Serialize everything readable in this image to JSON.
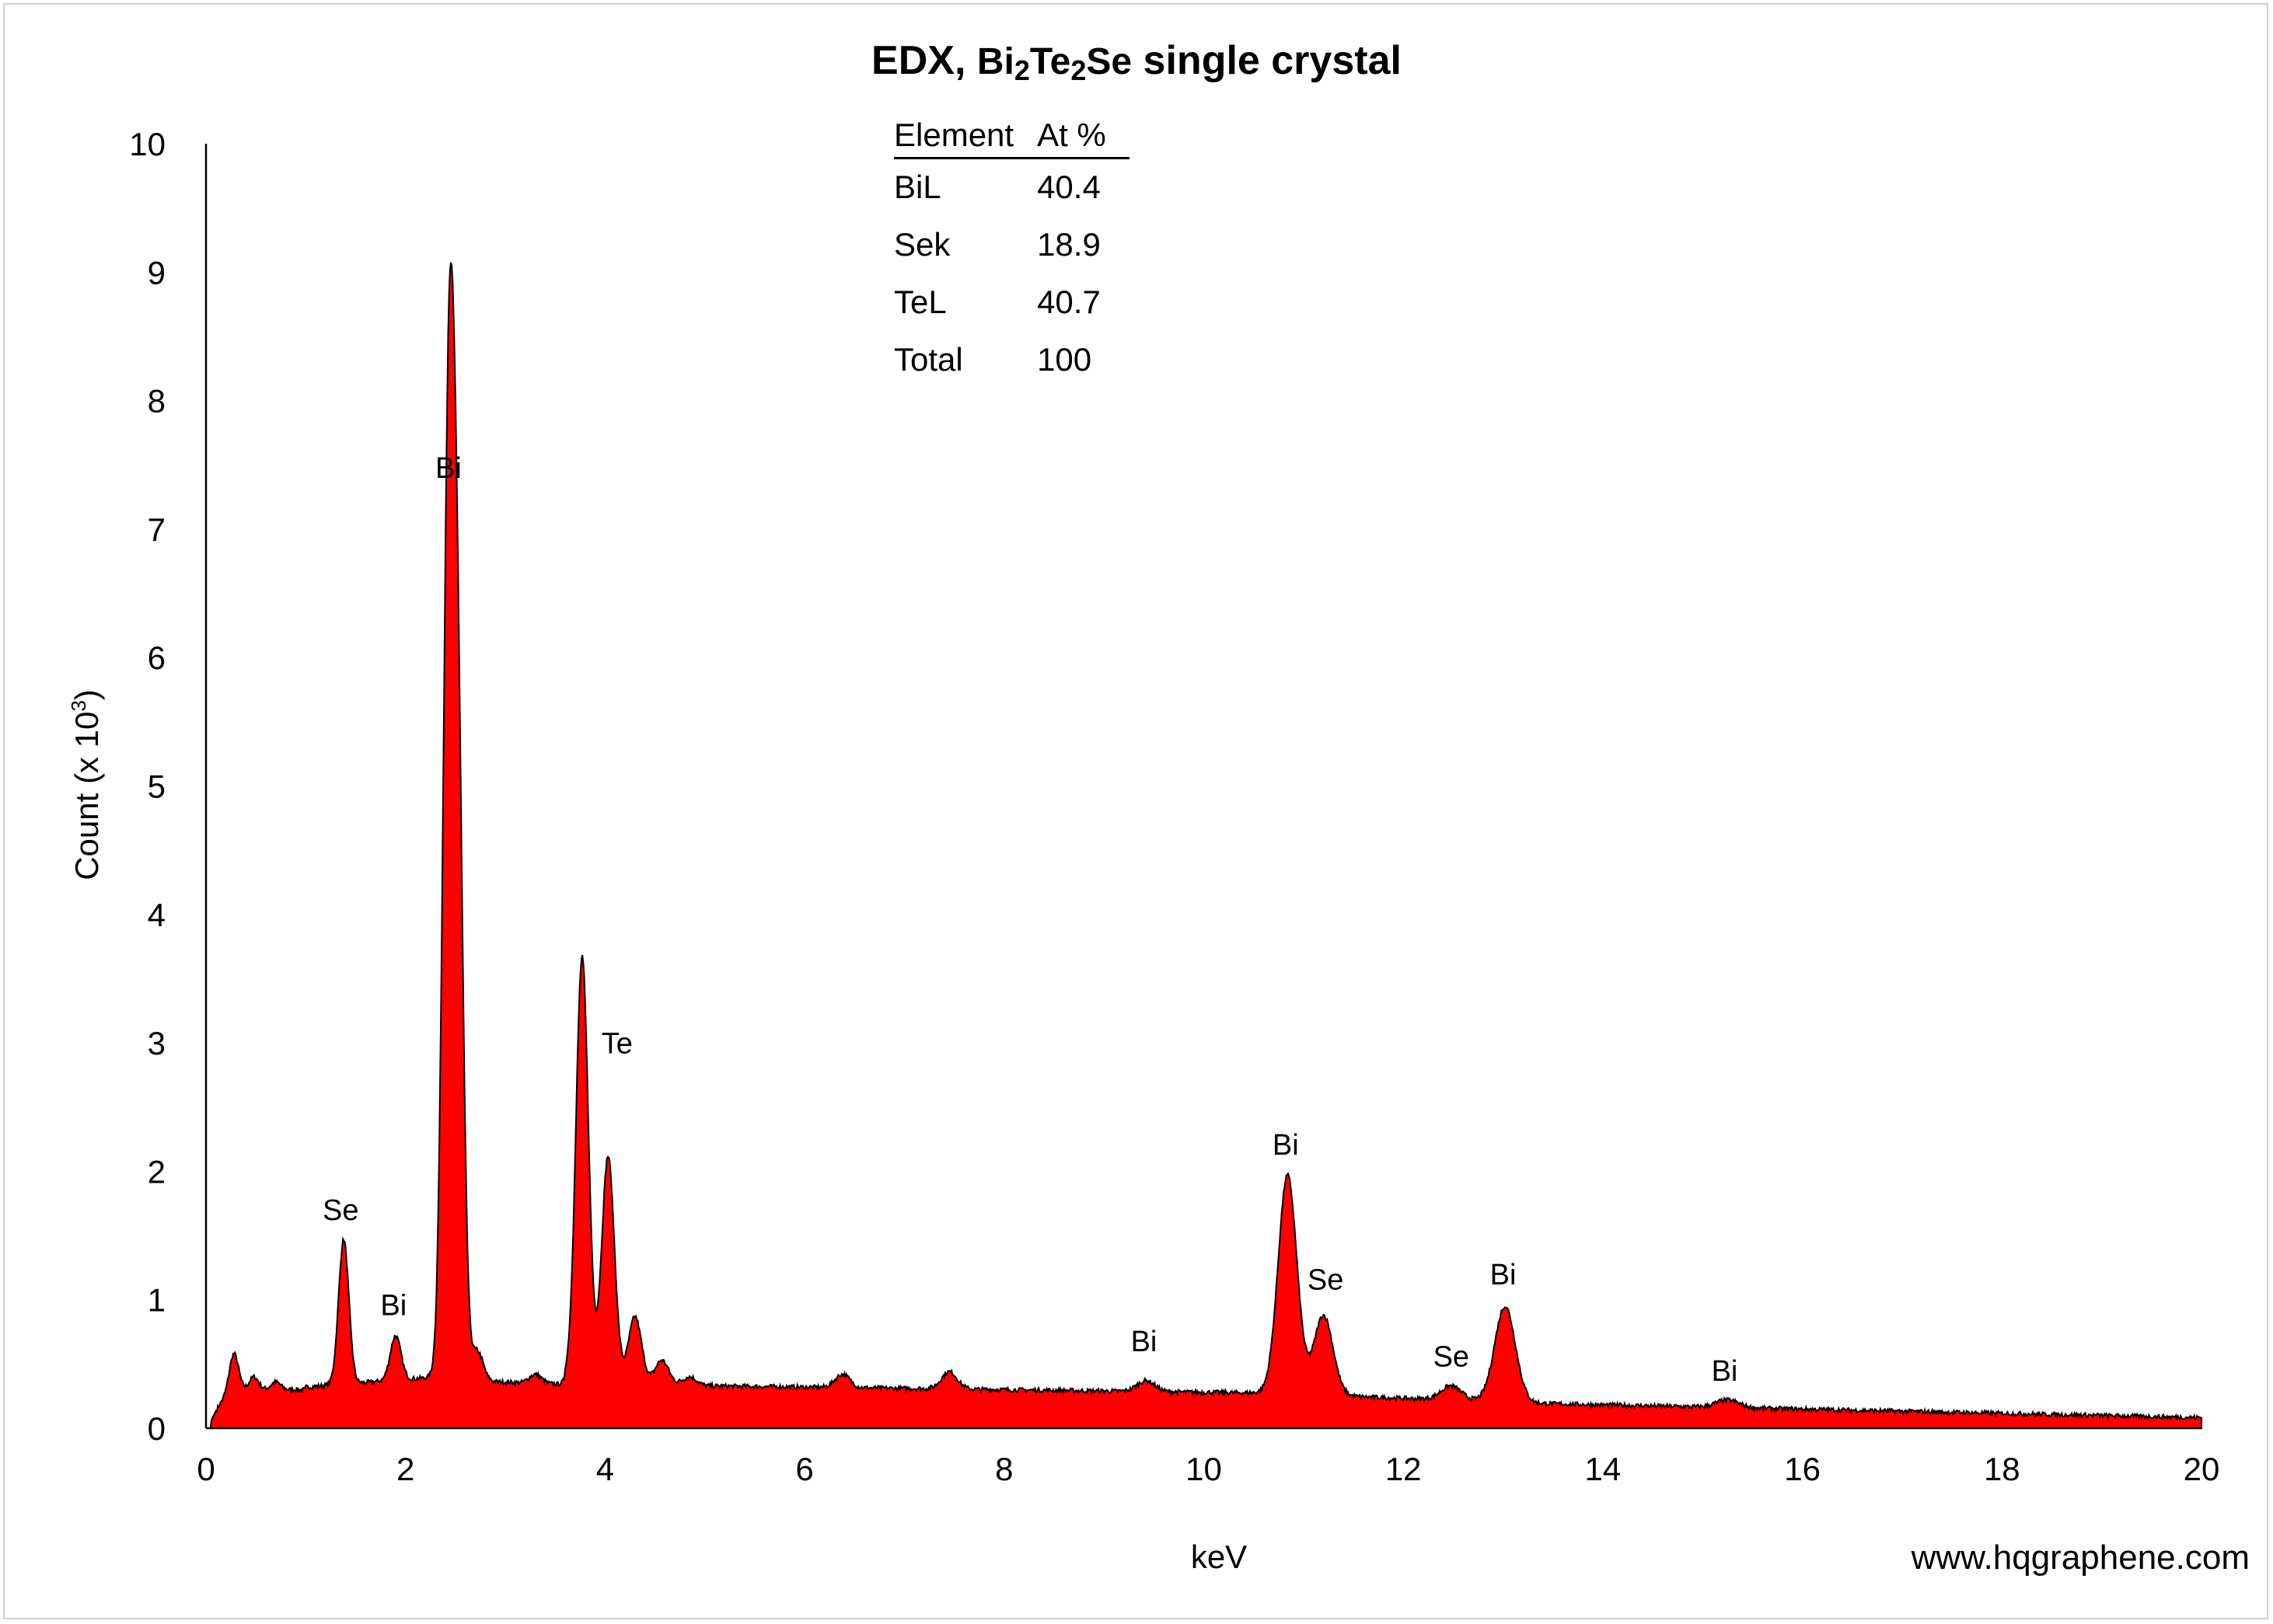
{
  "chart_data": {
    "type": "area",
    "title_prefix": "EDX, ",
    "formula": {
      "p1": "Bi",
      "s1": "2",
      "p2": "Te",
      "s2": "2",
      "p3": "Se"
    },
    "title_suffix": " single crystal",
    "ylabel_prefix": "Count (x 10",
    "ylabel_sup": "3",
    "ylabel_suffix": ")",
    "xlabel": "keV",
    "xlim": [
      0,
      20
    ],
    "ylim": [
      0,
      10
    ],
    "xticks": [
      "0",
      "2",
      "4",
      "6",
      "8",
      "10",
      "12",
      "14",
      "16",
      "18",
      "20"
    ],
    "yticks": [
      "0",
      "1",
      "2",
      "3",
      "4",
      "5",
      "6",
      "7",
      "8",
      "9",
      "10"
    ],
    "fill_color": "#ff0000",
    "line_color": "#000000",
    "peaks": [
      {
        "x": 0.28,
        "y": 0.58
      },
      {
        "x": 0.48,
        "y": 0.4
      },
      {
        "x": 0.7,
        "y": 0.36
      },
      {
        "x": 1.38,
        "y": 1.47
      },
      {
        "x": 1.9,
        "y": 0.72
      },
      {
        "x": 2.43,
        "y": 7.28
      },
      {
        "x": 2.52,
        "y": 5.15
      },
      {
        "x": 2.72,
        "y": 0.6
      },
      {
        "x": 3.3,
        "y": 0.42
      },
      {
        "x": 3.77,
        "y": 3.67
      },
      {
        "x": 4.03,
        "y": 2.12
      },
      {
        "x": 4.3,
        "y": 0.87
      },
      {
        "x": 4.57,
        "y": 0.53
      },
      {
        "x": 4.85,
        "y": 0.4
      },
      {
        "x": 6.38,
        "y": 0.42
      },
      {
        "x": 7.45,
        "y": 0.44
      },
      {
        "x": 9.42,
        "y": 0.37
      },
      {
        "x": 10.84,
        "y": 1.97
      },
      {
        "x": 11.2,
        "y": 0.88
      },
      {
        "x": 12.48,
        "y": 0.33
      },
      {
        "x": 13.02,
        "y": 0.95
      },
      {
        "x": 15.25,
        "y": 0.22
      }
    ],
    "annotations": [
      {
        "text": "Se",
        "x": 1.35,
        "y": 1.62
      },
      {
        "text": "Bi",
        "x": 1.88,
        "y": 0.88
      },
      {
        "text": "Bi",
        "x": 2.43,
        "y": 7.4
      },
      {
        "text": "Te",
        "x": 4.12,
        "y": 2.92
      },
      {
        "text": "Bi",
        "x": 9.4,
        "y": 0.6
      },
      {
        "text": "Bi",
        "x": 10.82,
        "y": 2.13
      },
      {
        "text": "Se",
        "x": 11.22,
        "y": 1.08
      },
      {
        "text": "Se",
        "x": 12.48,
        "y": 0.48
      },
      {
        "text": "Bi",
        "x": 13.0,
        "y": 1.12
      },
      {
        "text": "Bi",
        "x": 15.22,
        "y": 0.37
      }
    ]
  },
  "composition_table": {
    "headers": [
      "Element",
      "At %"
    ],
    "rows": [
      [
        "BiL",
        "40.4"
      ],
      [
        "Sek",
        "18.9"
      ],
      [
        "TeL",
        "40.7"
      ],
      [
        "Total",
        "100"
      ]
    ]
  },
  "watermark": "www.hqgraphene.com"
}
